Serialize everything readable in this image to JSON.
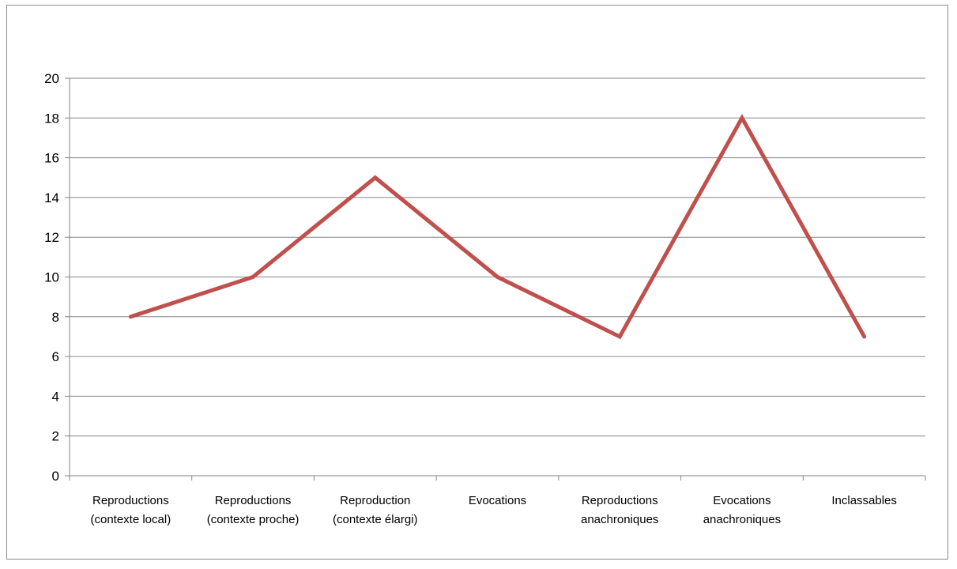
{
  "chart_data": {
    "type": "line",
    "title": "",
    "xlabel": "",
    "ylabel": "",
    "ylim": [
      0,
      20
    ],
    "ytick_step": 2,
    "grid": true,
    "legend": "none",
    "categories": [
      [
        "Reproductions",
        "(contexte local)"
      ],
      [
        "Reproductions",
        "(contexte proche)"
      ],
      [
        "Reproduction",
        "(contexte élargi)"
      ],
      [
        "Evocations"
      ],
      [
        "Reproductions",
        "anachroniques"
      ],
      [
        "Evocations",
        "anachroniques"
      ],
      [
        "Inclassables"
      ]
    ],
    "series": [
      {
        "values": [
          8,
          10,
          15,
          10,
          7,
          18,
          7
        ],
        "color": "#c0504d"
      }
    ],
    "colors": {
      "grid": "#868686",
      "axis": "#868686",
      "line": "#c0504d"
    }
  }
}
